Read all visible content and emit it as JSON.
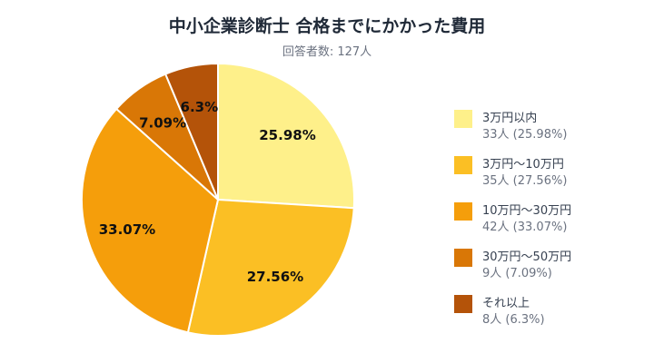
{
  "chart_data": {
    "type": "pie",
    "title": "中小企業診断士 合格までにかかった費用",
    "subtitle": "回答者数: 127人",
    "legend_position": "right",
    "slices": [
      {
        "label": "3万円以内",
        "count": 33,
        "percent": 25.98,
        "percent_label": "25.98%",
        "detail": "33人 (25.98%)",
        "color": "#FEF08A"
      },
      {
        "label": "3万円〜10万円",
        "count": 35,
        "percent": 27.56,
        "percent_label": "27.56%",
        "detail": "35人 (27.56%)",
        "color": "#FBBF24"
      },
      {
        "label": "10万円〜30万円",
        "count": 42,
        "percent": 33.07,
        "percent_label": "33.07%",
        "detail": "42人 (33.07%)",
        "color": "#F59E0B"
      },
      {
        "label": "30万円〜50万円",
        "count": 9,
        "percent": 7.09,
        "percent_label": "7.09%",
        "detail": "9人 (7.09%)",
        "color": "#D97706"
      },
      {
        "label": "それ以上",
        "count": 8,
        "percent": 6.3,
        "percent_label": "6.3%",
        "detail": "8人 (6.3%)",
        "color": "#B45309"
      }
    ]
  }
}
